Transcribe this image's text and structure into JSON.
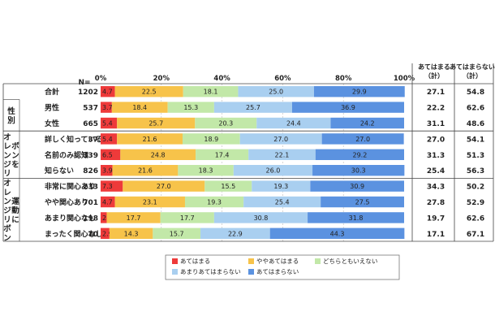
{
  "chart_data": {
    "type": "bar",
    "stacked": "100%",
    "orientation": "horizontal",
    "n_header": "N=",
    "xaxis": {
      "ticks": [
        "0%",
        "20%",
        "40%",
        "60%",
        "80%",
        "100%"
      ],
      "range": [
        0,
        100
      ]
    },
    "summary_headers": [
      "あてはまる（計）",
      "あてはまらない（計）"
    ],
    "group_labels": [
      "性別",
      "オレンジリボンを",
      "オレンジリボン運動に"
    ],
    "rows": [
      {
        "label": "合計",
        "n": "1202",
        "values": [
          4.7,
          22.5,
          18.1,
          25.0,
          29.9
        ],
        "sum1": "27.1",
        "sum2": "54.8"
      },
      {
        "label": "男性",
        "n": "537",
        "values": [
          3.7,
          18.4,
          15.3,
          25.7,
          36.9
        ],
        "sum1": "22.2",
        "sum2": "62.6"
      },
      {
        "label": "女性",
        "n": "665",
        "values": [
          5.4,
          25.7,
          20.3,
          24.4,
          24.2
        ],
        "sum1": "31.1",
        "sum2": "48.6"
      },
      {
        "label": "詳しく知っている",
        "n": "37",
        "values": [
          5.4,
          21.6,
          18.9,
          27.0,
          27.0
        ],
        "sum1": "27.0",
        "sum2": "54.1"
      },
      {
        "label": "名前のみ認知",
        "n": "339",
        "values": [
          6.5,
          24.8,
          17.4,
          22.1,
          29.2
        ],
        "sum1": "31.3",
        "sum2": "51.3"
      },
      {
        "label": "知らない",
        "n": "826",
        "values": [
          3.9,
          21.6,
          18.3,
          26.0,
          30.3
        ],
        "sum1": "25.4",
        "sum2": "56.3"
      },
      {
        "label": "非常に関心あり",
        "n": "233",
        "values": [
          7.3,
          27.0,
          15.5,
          19.3,
          30.9
        ],
        "sum1": "34.3",
        "sum2": "50.2"
      },
      {
        "label": "やや関心あり",
        "n": "701",
        "values": [
          4.7,
          23.1,
          19.3,
          25.4,
          27.5
        ],
        "sum1": "27.8",
        "sum2": "52.9"
      },
      {
        "label": "あまり関心なし",
        "n": "198",
        "values": [
          2.0,
          17.7,
          17.7,
          30.8,
          31.8
        ],
        "sum1": "19.7",
        "sum2": "62.6"
      },
      {
        "label": "まったく関心なし",
        "n": "70",
        "values": [
          2.9,
          14.3,
          15.7,
          22.9,
          44.3
        ],
        "sum1": "17.1",
        "sum2": "67.1"
      }
    ],
    "series": [
      {
        "name": "あてはまる",
        "color": "#ee3a3a"
      },
      {
        "name": "ややあてはまる",
        "color": "#f7c34a"
      },
      {
        "name": "どちらともいえない",
        "color": "#c2e8a8"
      },
      {
        "name": "あまりあてはまらない",
        "color": "#a9cff0"
      },
      {
        "name": "あてはまらない",
        "color": "#5b92e0"
      }
    ],
    "grid": true
  }
}
